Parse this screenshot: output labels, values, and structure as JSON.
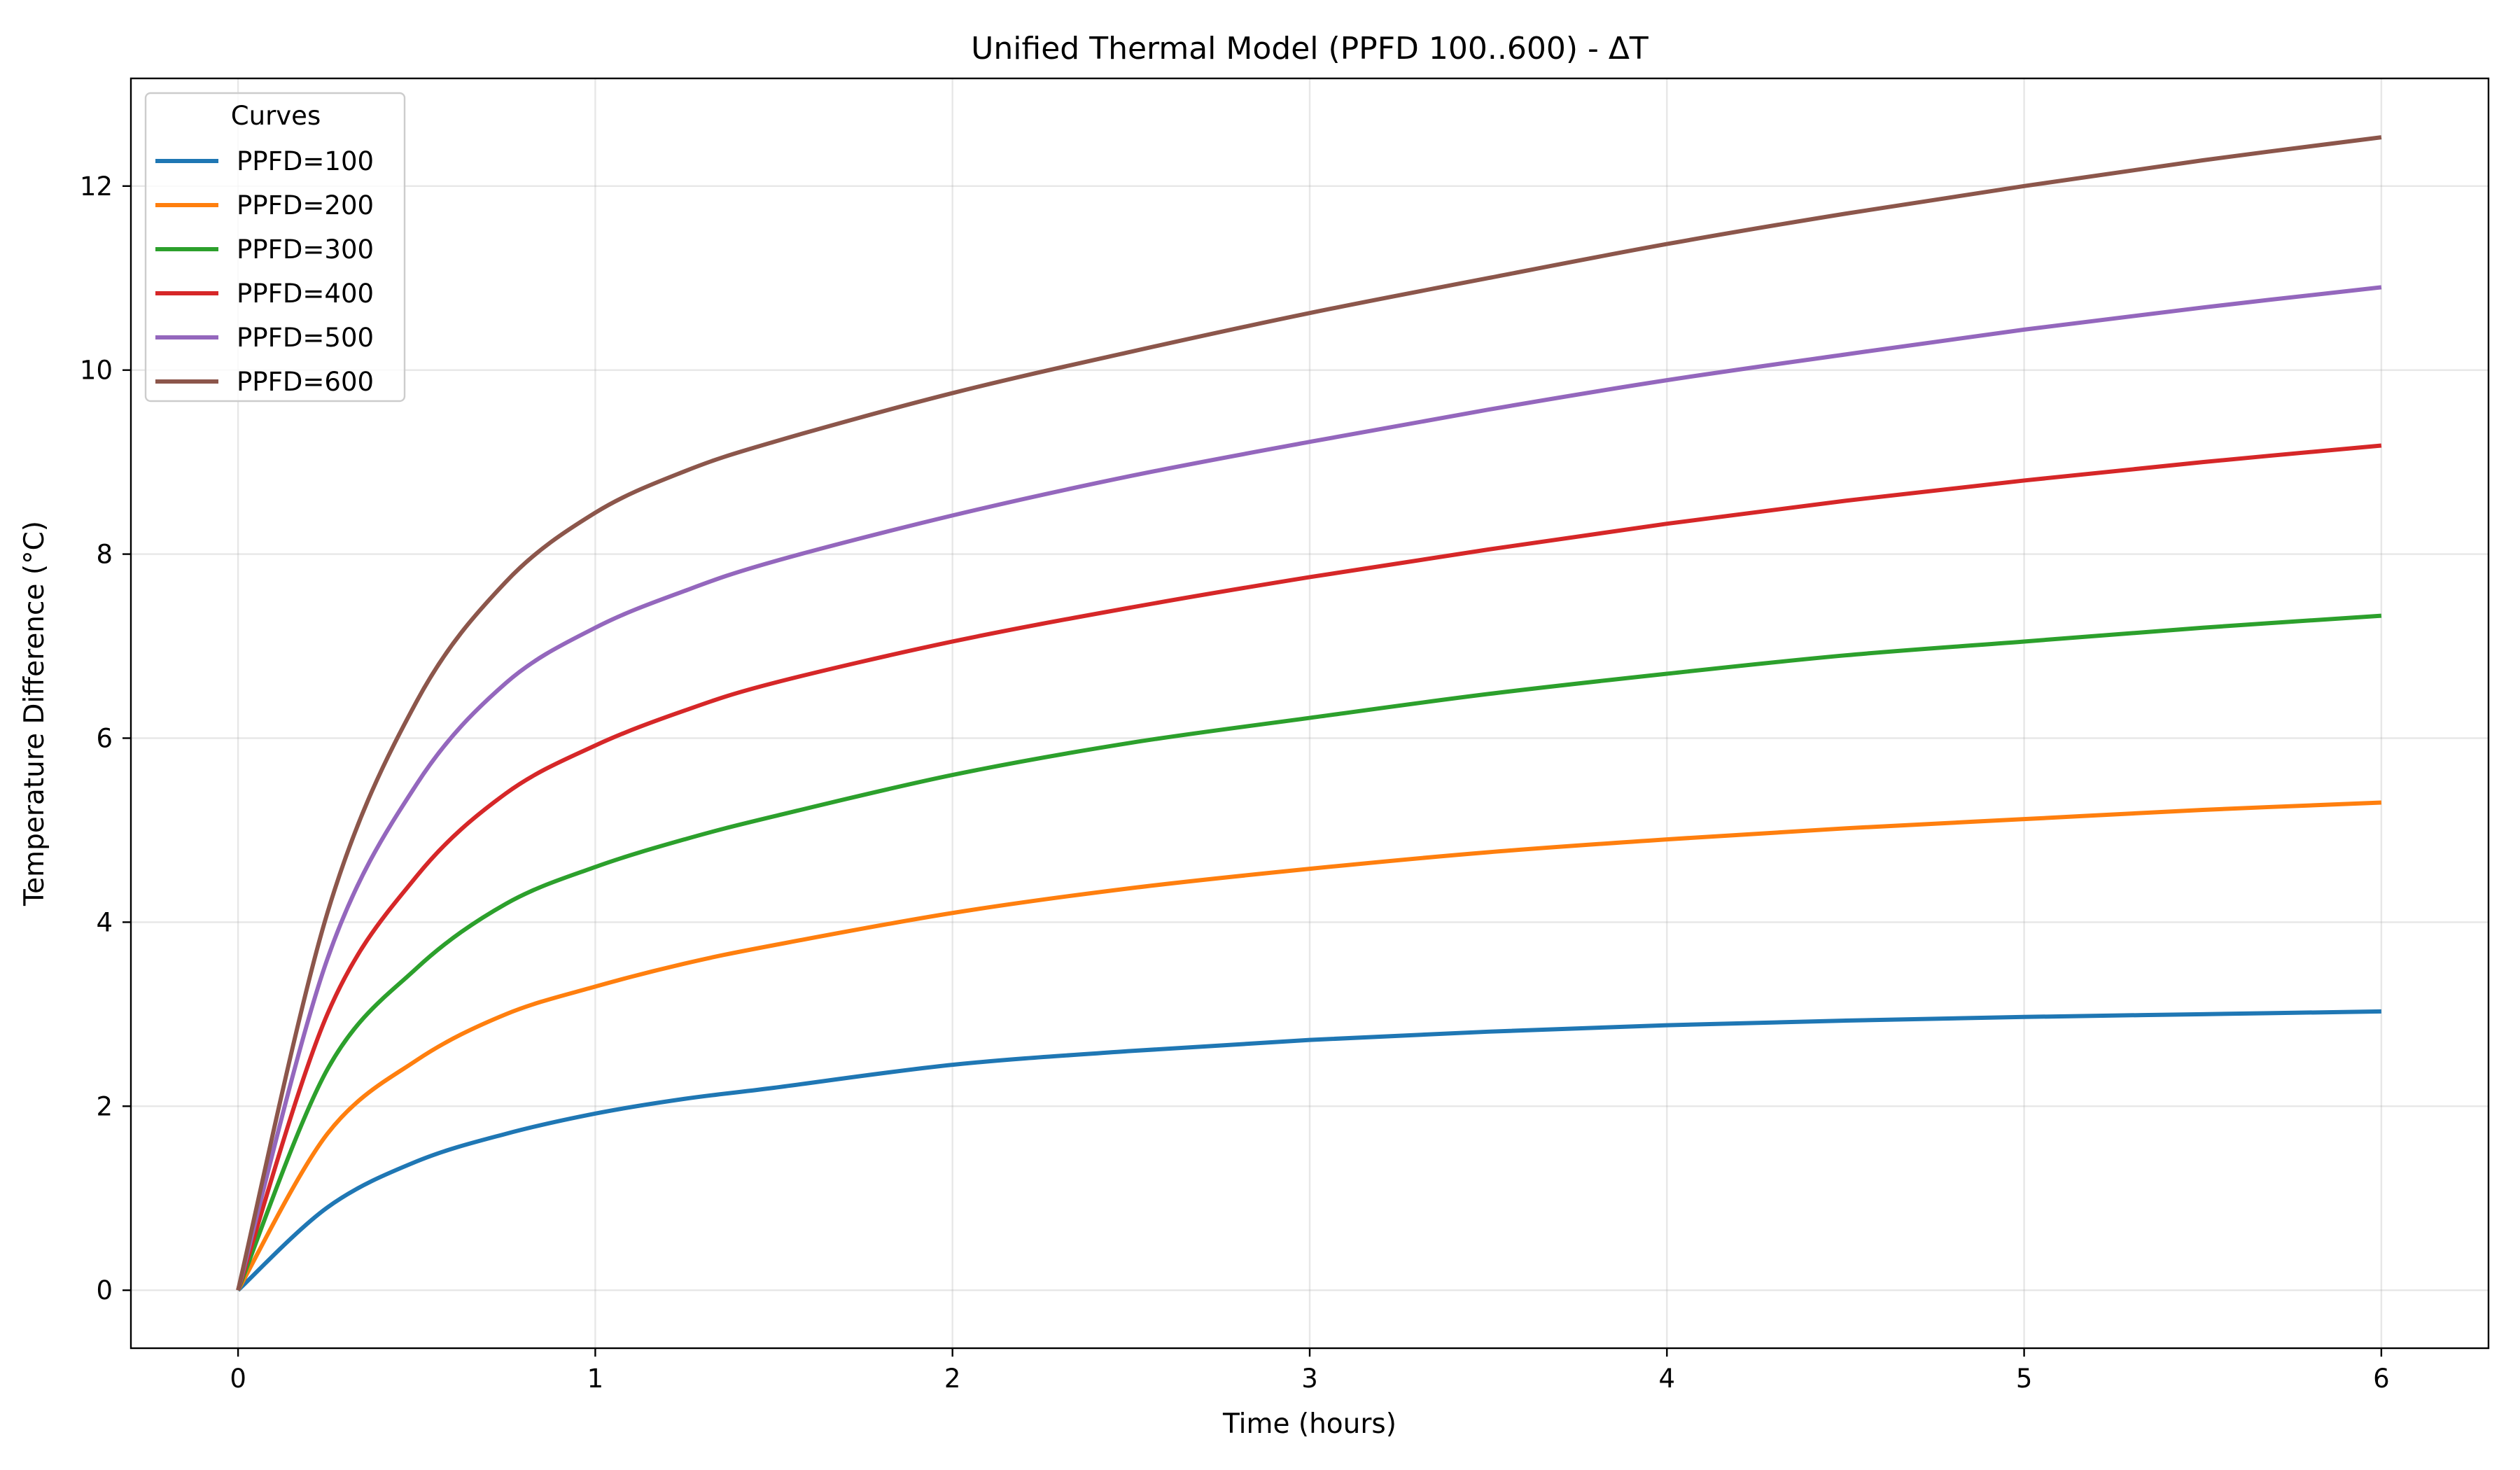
{
  "chart_data": {
    "type": "line",
    "title": "Unified Thermal Model (PPFD 100..600) - ΔT",
    "xlabel": "Time (hours)",
    "ylabel": "Temperature Difference (°C)",
    "xlim": [
      -0.3,
      6.3
    ],
    "ylim": [
      -0.63,
      13.17
    ],
    "xticks": [
      0,
      1,
      2,
      3,
      4,
      5,
      6
    ],
    "yticks": [
      0,
      2,
      4,
      6,
      8,
      10,
      12
    ],
    "grid": true,
    "legend": {
      "title": "Curves",
      "placement": "upper left"
    },
    "x": [
      0,
      0.25,
      0.5,
      0.75,
      1,
      1.25,
      1.5,
      2,
      2.5,
      3,
      3.5,
      4,
      4.5,
      5,
      5.5,
      6
    ],
    "series": [
      {
        "name": "PPFD=100",
        "color": "#1f77b4",
        "values": [
          0,
          0.9,
          1.4,
          1.7,
          1.92,
          2.08,
          2.2,
          2.45,
          2.6,
          2.72,
          2.81,
          2.88,
          2.93,
          2.97,
          3.0,
          3.03
        ]
      },
      {
        "name": "PPFD=200",
        "color": "#ff7f0e",
        "values": [
          0,
          1.7,
          2.5,
          3.0,
          3.3,
          3.55,
          3.75,
          4.1,
          4.37,
          4.58,
          4.76,
          4.9,
          5.02,
          5.12,
          5.22,
          5.3
        ]
      },
      {
        "name": "PPFD=300",
        "color": "#2ca02c",
        "values": [
          0,
          2.4,
          3.5,
          4.2,
          4.6,
          4.9,
          5.15,
          5.6,
          5.95,
          6.22,
          6.48,
          6.7,
          6.9,
          7.05,
          7.2,
          7.33
        ]
      },
      {
        "name": "PPFD=400",
        "color": "#d62728",
        "values": [
          0,
          3.0,
          4.5,
          5.4,
          5.92,
          6.3,
          6.6,
          7.05,
          7.42,
          7.75,
          8.05,
          8.33,
          8.58,
          8.8,
          9.0,
          9.18
        ]
      },
      {
        "name": "PPFD=500",
        "color": "#9467bd",
        "values": [
          0,
          3.6,
          5.5,
          6.6,
          7.2,
          7.6,
          7.92,
          8.42,
          8.85,
          9.22,
          9.57,
          9.89,
          10.17,
          10.44,
          10.68,
          10.9
        ]
      },
      {
        "name": "PPFD=600",
        "color": "#8c564b",
        "values": [
          0,
          4.1,
          6.4,
          7.7,
          8.45,
          8.9,
          9.22,
          9.75,
          10.2,
          10.62,
          11.0,
          11.37,
          11.7,
          12.0,
          12.28,
          12.53
        ]
      }
    ]
  }
}
